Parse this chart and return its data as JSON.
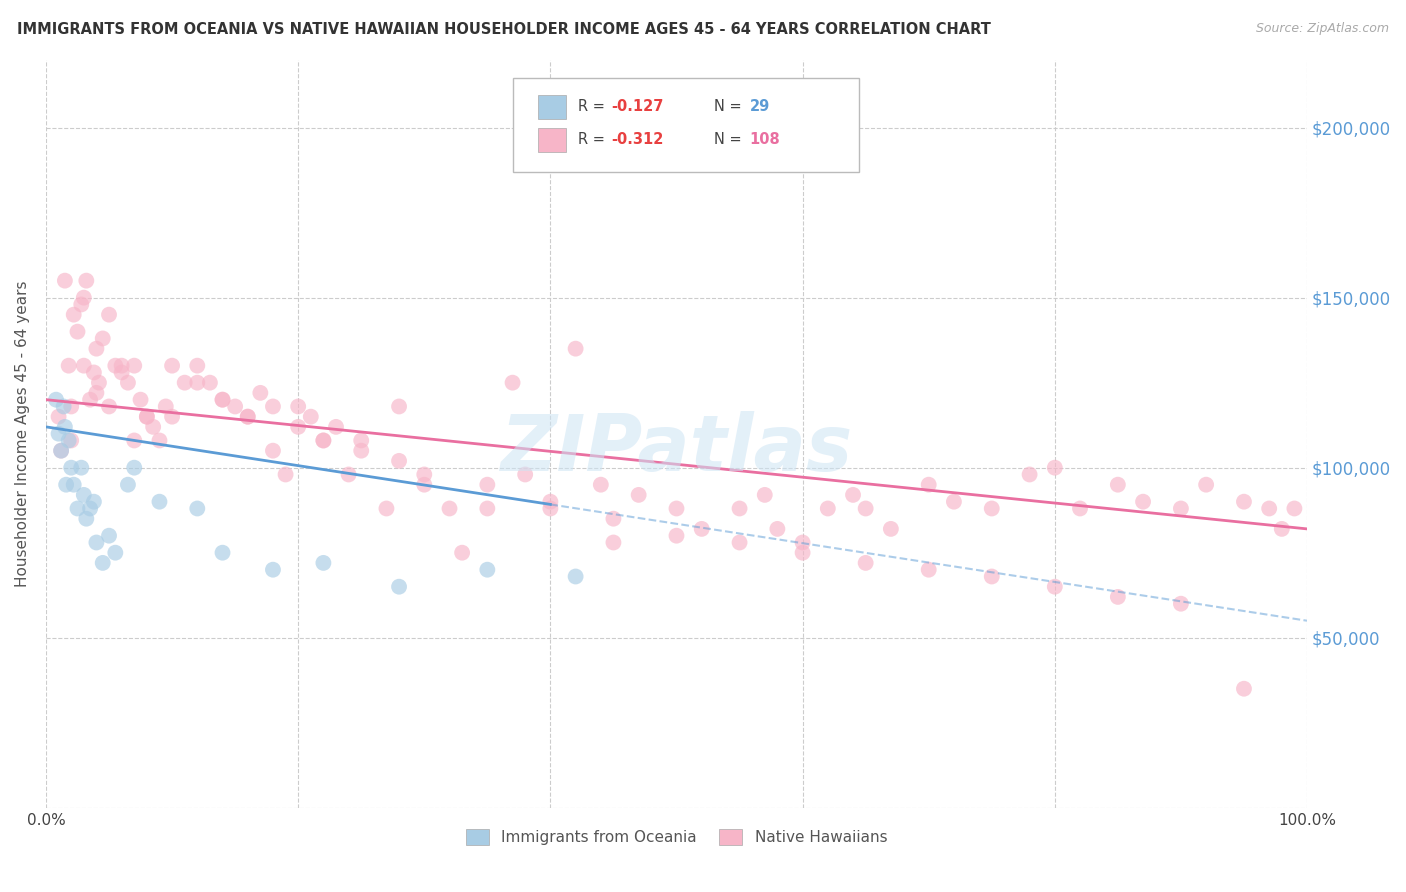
{
  "title": "IMMIGRANTS FROM OCEANIA VS NATIVE HAWAIIAN HOUSEHOLDER INCOME AGES 45 - 64 YEARS CORRELATION CHART",
  "source": "Source: ZipAtlas.com",
  "ylabel": "Householder Income Ages 45 - 64 years",
  "xmin": 0.0,
  "xmax": 100.0,
  "ymin": 0,
  "ymax": 220000,
  "yticks": [
    0,
    50000,
    100000,
    150000,
    200000
  ],
  "ytick_labels_right": [
    "",
    "$50,000",
    "$100,000",
    "$150,000",
    "$200,000"
  ],
  "color_blue": "#a8cce4",
  "color_pink": "#f7b5c8",
  "color_blue_line": "#5b9bd5",
  "color_pink_line": "#e96fa0",
  "color_blue_text": "#5b9bd5",
  "color_pink_text": "#e96fa0",
  "color_red_text": "#e84040",
  "R_blue": -0.127,
  "N_blue": 29,
  "R_pink": -0.312,
  "N_pink": 108,
  "legend_label_blue": "Immigrants from Oceania",
  "legend_label_pink": "Native Hawaiians",
  "watermark": "ZIPatlas",
  "blue_line_x0": 0,
  "blue_line_y0": 112000,
  "blue_line_x1": 100,
  "blue_line_y1": 55000,
  "pink_line_x0": 0,
  "pink_line_y0": 120000,
  "pink_line_x1": 100,
  "pink_line_y1": 82000,
  "blue_solid_end_x": 40,
  "blue_scatter_x": [
    0.8,
    1.0,
    1.2,
    1.4,
    1.5,
    1.6,
    1.8,
    2.0,
    2.2,
    2.5,
    2.8,
    3.0,
    3.2,
    3.5,
    3.8,
    4.0,
    4.5,
    5.0,
    5.5,
    6.5,
    7.0,
    9.0,
    12.0,
    14.0,
    18.0,
    22.0,
    28.0,
    35.0,
    42.0
  ],
  "blue_scatter_y": [
    120000,
    110000,
    105000,
    118000,
    112000,
    95000,
    108000,
    100000,
    95000,
    88000,
    100000,
    92000,
    85000,
    88000,
    90000,
    78000,
    72000,
    80000,
    75000,
    95000,
    100000,
    90000,
    88000,
    75000,
    70000,
    72000,
    65000,
    70000,
    68000
  ],
  "pink_scatter_x": [
    1.0,
    1.2,
    1.5,
    1.8,
    2.0,
    2.2,
    2.5,
    2.8,
    3.0,
    3.2,
    3.5,
    3.8,
    4.0,
    4.2,
    4.5,
    5.0,
    5.5,
    6.0,
    6.5,
    7.0,
    7.5,
    8.0,
    8.5,
    9.0,
    9.5,
    10.0,
    11.0,
    12.0,
    13.0,
    14.0,
    15.0,
    16.0,
    17.0,
    18.0,
    19.0,
    20.0,
    21.0,
    22.0,
    23.0,
    24.0,
    25.0,
    27.0,
    28.0,
    30.0,
    32.0,
    33.0,
    35.0,
    37.0,
    38.0,
    40.0,
    42.0,
    44.0,
    45.0,
    47.0,
    50.0,
    52.0,
    55.0,
    57.0,
    58.0,
    60.0,
    62.0,
    64.0,
    65.0,
    67.0,
    70.0,
    72.0,
    75.0,
    78.0,
    80.0,
    82.0,
    85.0,
    87.0,
    90.0,
    92.0,
    95.0,
    97.0,
    98.0,
    99.0,
    2.0,
    3.0,
    4.0,
    5.0,
    6.0,
    7.0,
    8.0,
    10.0,
    12.0,
    14.0,
    16.0,
    18.0,
    20.0,
    22.0,
    25.0,
    28.0,
    30.0,
    35.0,
    40.0,
    45.0,
    50.0,
    55.0,
    60.0,
    65.0,
    70.0,
    75.0,
    80.0,
    85.0,
    90.0,
    95.0
  ],
  "pink_scatter_y": [
    115000,
    105000,
    155000,
    130000,
    118000,
    145000,
    140000,
    148000,
    150000,
    155000,
    120000,
    128000,
    135000,
    125000,
    138000,
    145000,
    130000,
    128000,
    125000,
    130000,
    120000,
    115000,
    112000,
    108000,
    118000,
    115000,
    125000,
    130000,
    125000,
    120000,
    118000,
    115000,
    122000,
    105000,
    98000,
    118000,
    115000,
    108000,
    112000,
    98000,
    108000,
    88000,
    118000,
    95000,
    88000,
    75000,
    88000,
    125000,
    98000,
    88000,
    135000,
    95000,
    78000,
    92000,
    88000,
    82000,
    88000,
    92000,
    82000,
    78000,
    88000,
    92000,
    88000,
    82000,
    95000,
    90000,
    88000,
    98000,
    100000,
    88000,
    95000,
    90000,
    88000,
    95000,
    90000,
    88000,
    82000,
    88000,
    108000,
    130000,
    122000,
    118000,
    130000,
    108000,
    115000,
    130000,
    125000,
    120000,
    115000,
    118000,
    112000,
    108000,
    105000,
    102000,
    98000,
    95000,
    90000,
    85000,
    80000,
    78000,
    75000,
    72000,
    70000,
    68000,
    65000,
    62000,
    60000,
    35000
  ]
}
